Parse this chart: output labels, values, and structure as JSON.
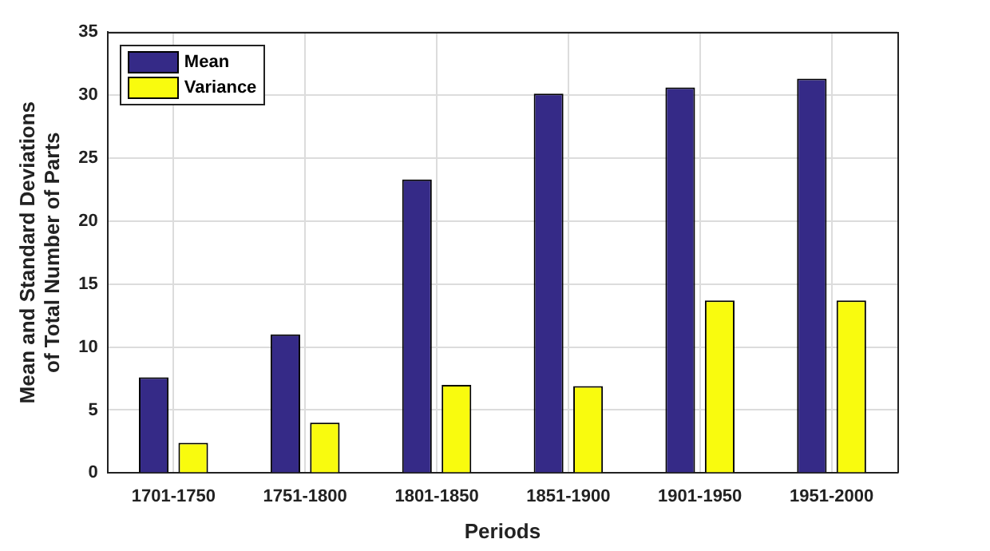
{
  "chart_data": {
    "type": "bar",
    "xlabel": "Periods",
    "ylabel": "Mean and Standard Deviations\nof Total Number of Parts",
    "categories": [
      "1701-1750",
      "1751-1800",
      "1801-1850",
      "1851-1900",
      "1901-1950",
      "1951-2000"
    ],
    "series": [
      {
        "name": "Mean",
        "color": "#352a87",
        "values": [
          7.6,
          11,
          23.3,
          30.1,
          30.6,
          31.3
        ]
      },
      {
        "name": "Variance",
        "color": "#f9fb0e",
        "values": [
          2.4,
          4,
          7,
          6.9,
          13.7,
          13.7
        ]
      }
    ],
    "ylim": [
      0,
      35
    ],
    "yticks": [
      0,
      5,
      10,
      15,
      20,
      25,
      30,
      35
    ],
    "grid": true,
    "legend": "top left"
  }
}
